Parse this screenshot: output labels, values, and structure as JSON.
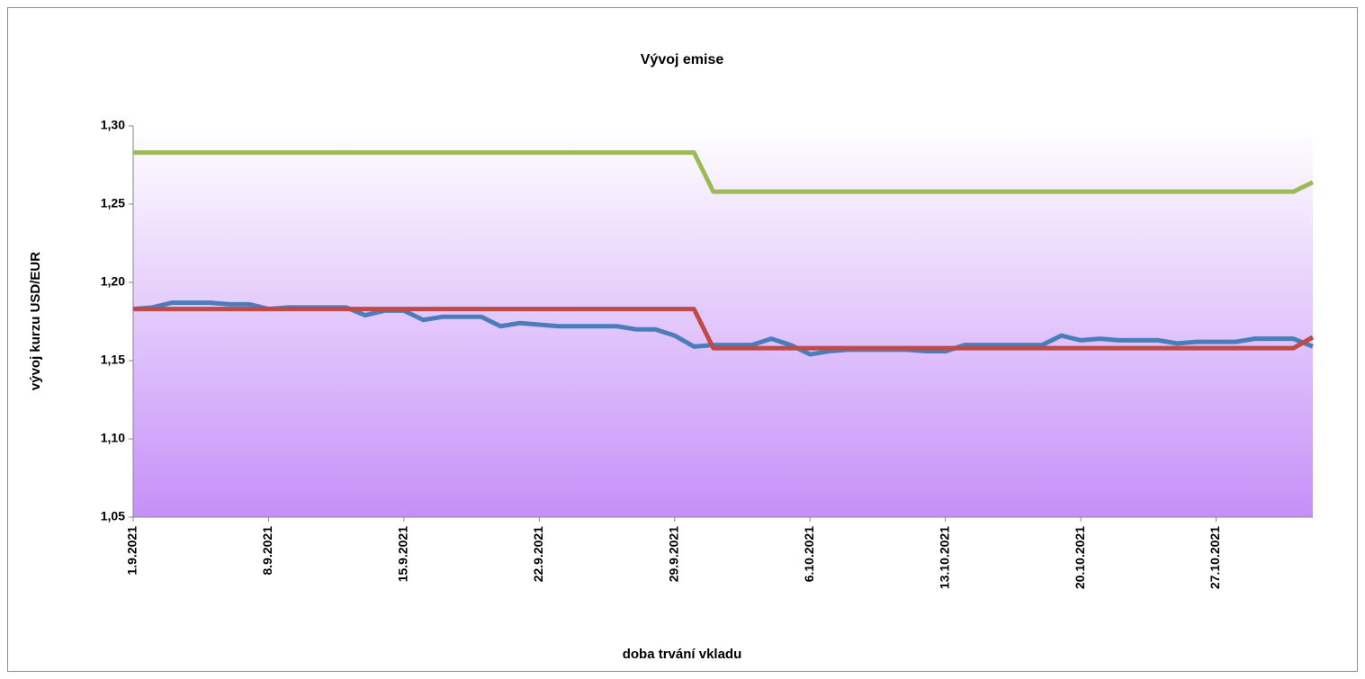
{
  "chart_data": {
    "type": "line",
    "title": "Vývoj emise",
    "xlabel": "doba trvání vkladu",
    "ylabel": "vývoj kurzu USD/EUR",
    "categories": [
      "1.9.2021",
      null,
      null,
      null,
      null,
      null,
      null,
      "8.9.2021",
      null,
      null,
      null,
      null,
      null,
      null,
      "15.9.2021",
      null,
      null,
      null,
      null,
      null,
      null,
      "22.9.2021",
      null,
      null,
      null,
      null,
      null,
      null,
      "29.9.2021",
      null,
      null,
      null,
      null,
      null,
      null,
      "6.10.2021",
      null,
      null,
      null,
      null,
      null,
      null,
      "13.10.2021",
      null,
      null,
      null,
      null,
      null,
      null,
      "20.10.2021",
      null,
      null,
      null,
      null,
      null,
      null,
      "27.10.2021",
      null,
      null,
      null,
      null,
      null
    ],
    "series": [
      {
        "color": "#4a7ebb",
        "values": [
          1.183,
          1.184,
          1.187,
          1.187,
          1.187,
          1.186,
          1.186,
          1.183,
          1.184,
          1.184,
          1.184,
          1.184,
          1.179,
          1.182,
          1.182,
          1.176,
          1.178,
          1.178,
          1.178,
          1.172,
          1.174,
          1.173,
          1.172,
          1.172,
          1.172,
          1.172,
          1.17,
          1.17,
          1.166,
          1.159,
          1.16,
          1.16,
          1.16,
          1.164,
          1.16,
          1.154,
          1.156,
          1.157,
          1.157,
          1.157,
          1.157,
          1.156,
          1.156,
          1.16,
          1.16,
          1.16,
          1.16,
          1.16,
          1.166,
          1.163,
          1.164,
          1.163,
          1.163,
          1.163,
          1.161,
          1.162,
          1.162,
          1.162,
          1.164,
          1.164,
          1.164,
          1.159
        ]
      },
      {
        "color": "#be4b48",
        "values": [
          1.183,
          1.183,
          1.183,
          1.183,
          1.183,
          1.183,
          1.183,
          1.183,
          1.183,
          1.183,
          1.183,
          1.183,
          1.183,
          1.183,
          1.183,
          1.183,
          1.183,
          1.183,
          1.183,
          1.183,
          1.183,
          1.183,
          1.183,
          1.183,
          1.183,
          1.183,
          1.183,
          1.183,
          1.183,
          1.183,
          1.158,
          1.158,
          1.158,
          1.158,
          1.158,
          1.158,
          1.158,
          1.158,
          1.158,
          1.158,
          1.158,
          1.158,
          1.158,
          1.158,
          1.158,
          1.158,
          1.158,
          1.158,
          1.158,
          1.158,
          1.158,
          1.158,
          1.158,
          1.158,
          1.158,
          1.158,
          1.158,
          1.158,
          1.158,
          1.158,
          1.158,
          1.165
        ]
      },
      {
        "color": "#9bbb59",
        "values": [
          1.283,
          1.283,
          1.283,
          1.283,
          1.283,
          1.283,
          1.283,
          1.283,
          1.283,
          1.283,
          1.283,
          1.283,
          1.283,
          1.283,
          1.283,
          1.283,
          1.283,
          1.283,
          1.283,
          1.283,
          1.283,
          1.283,
          1.283,
          1.283,
          1.283,
          1.283,
          1.283,
          1.283,
          1.283,
          1.283,
          1.258,
          1.258,
          1.258,
          1.258,
          1.258,
          1.258,
          1.258,
          1.258,
          1.258,
          1.258,
          1.258,
          1.258,
          1.258,
          1.258,
          1.258,
          1.258,
          1.258,
          1.258,
          1.258,
          1.258,
          1.258,
          1.258,
          1.258,
          1.258,
          1.258,
          1.258,
          1.258,
          1.258,
          1.258,
          1.258,
          1.258,
          1.264
        ]
      }
    ],
    "ylim": [
      1.05,
      1.3
    ],
    "yticks": [
      {
        "value": 1.05,
        "label": "1,05"
      },
      {
        "value": 1.1,
        "label": "1,10"
      },
      {
        "value": 1.15,
        "label": "1,15"
      },
      {
        "value": 1.2,
        "label": "1,20"
      },
      {
        "value": 1.25,
        "label": "1,25"
      },
      {
        "value": 1.3,
        "label": "1,30"
      }
    ],
    "grid": false
  }
}
